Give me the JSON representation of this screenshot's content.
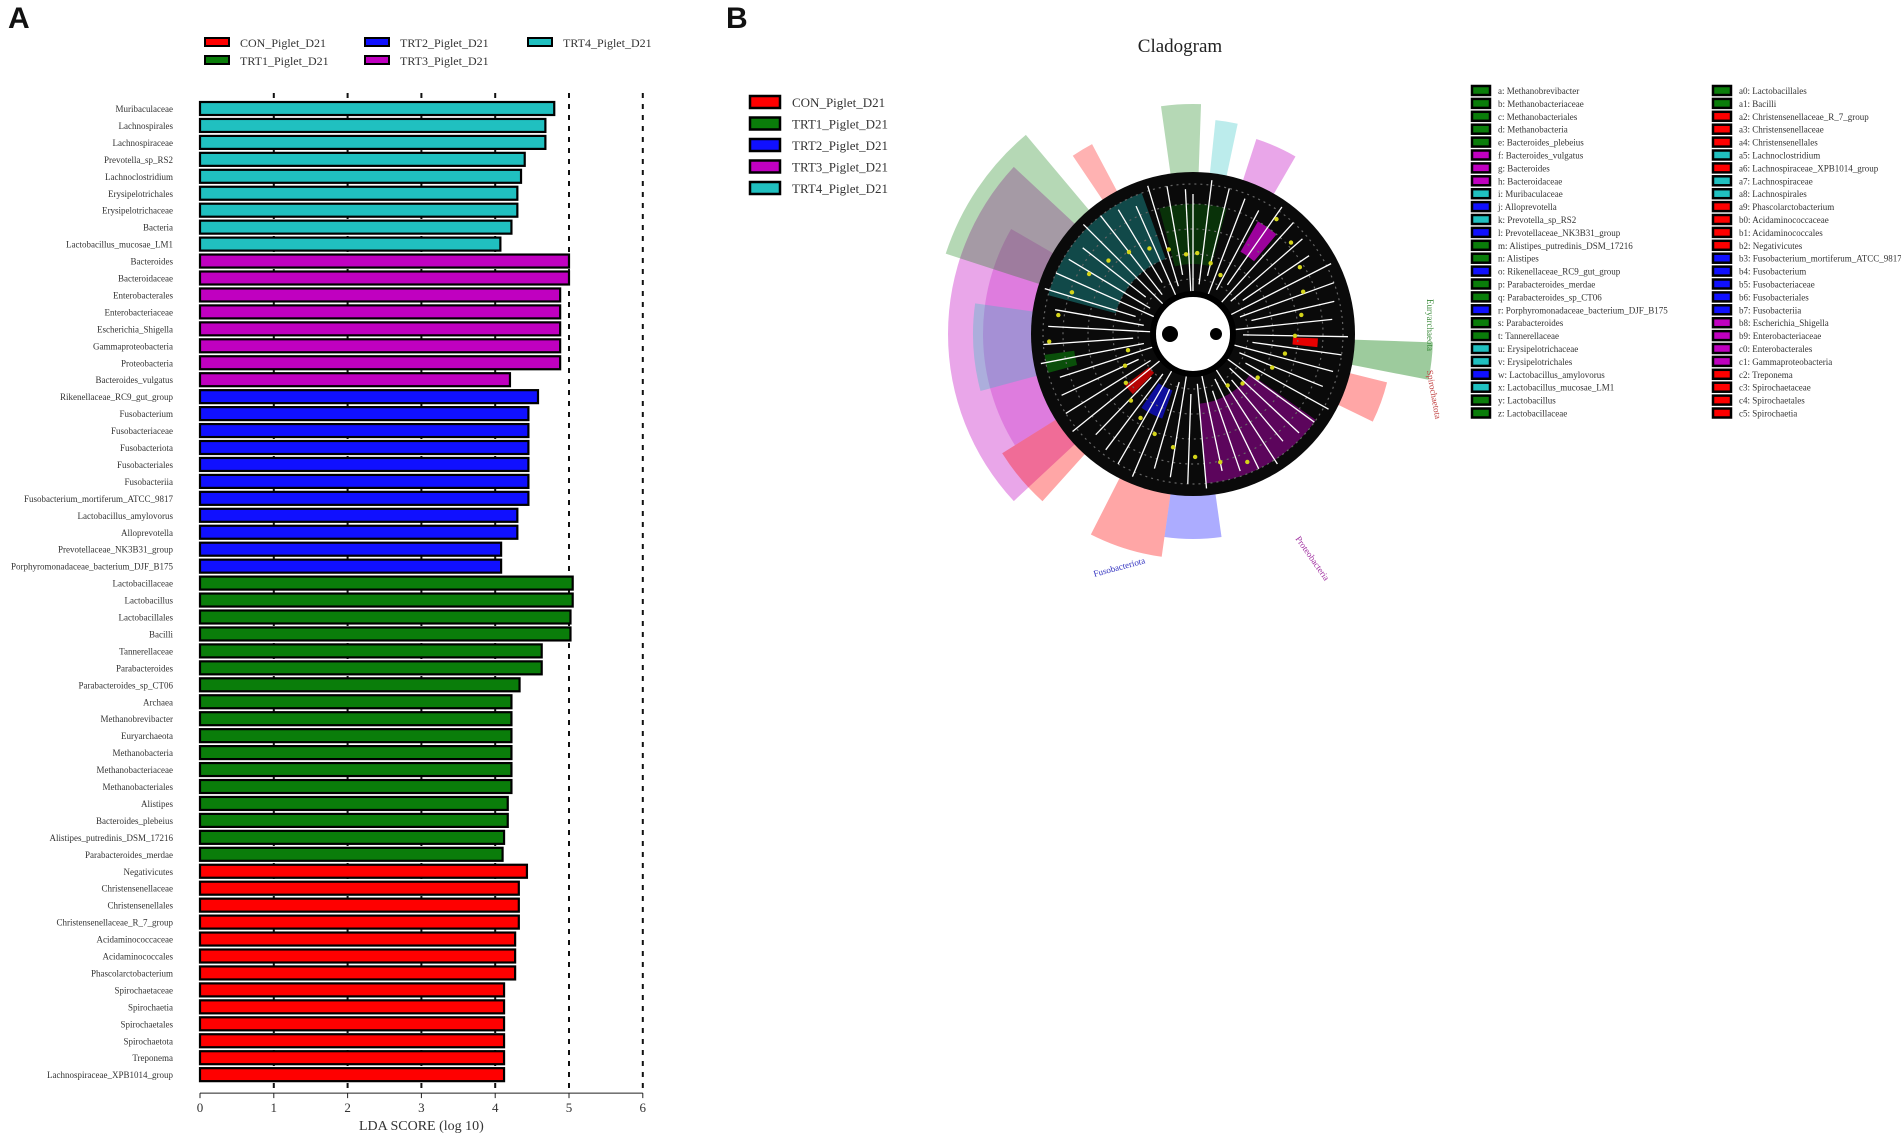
{
  "panels": {
    "a_label": "A",
    "b_label": "B",
    "b_title": "Cladogram"
  },
  "colors": {
    "CON_Piglet_D21": "#ff0000",
    "TRT1_Piglet_D21": "#0a7d0a",
    "TRT2_Piglet_D21": "#1010ff",
    "TRT3_Piglet_D21": "#c000c0",
    "TRT4_Piglet_D21": "#20c0c0"
  },
  "chart_data": [
    {
      "type": "bar",
      "orientation": "horizontal",
      "xlabel": "LDA SCORE (log 10)",
      "xlim": [
        0,
        6
      ],
      "xticks": [
        0,
        1,
        2,
        3,
        4,
        5,
        6
      ],
      "grid": "dashed vertical lines at 1-6",
      "legend_position": "top",
      "legend": [
        "CON_Piglet_D21",
        "TRT1_Piglet_D21",
        "TRT2_Piglet_D21",
        "TRT3_Piglet_D21",
        "TRT4_Piglet_D21"
      ],
      "bars": [
        {
          "label": "Muribaculaceae",
          "value": 4.8,
          "group": "TRT4_Piglet_D21"
        },
        {
          "label": "Lachnospirales",
          "value": 4.68,
          "group": "TRT4_Piglet_D21"
        },
        {
          "label": "Lachnospiraceae",
          "value": 4.68,
          "group": "TRT4_Piglet_D21"
        },
        {
          "label": "Prevotella_sp_RS2",
          "value": 4.4,
          "group": "TRT4_Piglet_D21"
        },
        {
          "label": "Lachnoclostridium",
          "value": 4.35,
          "group": "TRT4_Piglet_D21"
        },
        {
          "label": "Erysipelotrichales",
          "value": 4.3,
          "group": "TRT4_Piglet_D21"
        },
        {
          "label": "Erysipelotrichaceae",
          "value": 4.3,
          "group": "TRT4_Piglet_D21"
        },
        {
          "label": "Bacteria",
          "value": 4.22,
          "group": "TRT4_Piglet_D21"
        },
        {
          "label": "Lactobacillus_mucosae_LM1",
          "value": 4.07,
          "group": "TRT4_Piglet_D21"
        },
        {
          "label": "Bacteroides",
          "value": 5.0,
          "group": "TRT3_Piglet_D21"
        },
        {
          "label": "Bacteroidaceae",
          "value": 5.0,
          "group": "TRT3_Piglet_D21"
        },
        {
          "label": "Enterobacterales",
          "value": 4.88,
          "group": "TRT3_Piglet_D21"
        },
        {
          "label": "Enterobacteriaceae",
          "value": 4.88,
          "group": "TRT3_Piglet_D21"
        },
        {
          "label": "Escherichia_Shigella",
          "value": 4.88,
          "group": "TRT3_Piglet_D21"
        },
        {
          "label": "Gammaproteobacteria",
          "value": 4.88,
          "group": "TRT3_Piglet_D21"
        },
        {
          "label": "Proteobacteria",
          "value": 4.88,
          "group": "TRT3_Piglet_D21"
        },
        {
          "label": "Bacteroides_vulgatus",
          "value": 4.2,
          "group": "TRT3_Piglet_D21"
        },
        {
          "label": "Rikenellaceae_RC9_gut_group",
          "value": 4.58,
          "group": "TRT2_Piglet_D21"
        },
        {
          "label": "Fusobacterium",
          "value": 4.45,
          "group": "TRT2_Piglet_D21"
        },
        {
          "label": "Fusobacteriaceae",
          "value": 4.45,
          "group": "TRT2_Piglet_D21"
        },
        {
          "label": "Fusobacteriota",
          "value": 4.45,
          "group": "TRT2_Piglet_D21"
        },
        {
          "label": "Fusobacteriales",
          "value": 4.45,
          "group": "TRT2_Piglet_D21"
        },
        {
          "label": "Fusobacteriia",
          "value": 4.45,
          "group": "TRT2_Piglet_D21"
        },
        {
          "label": "Fusobacterium_mortiferum_ATCC_9817",
          "value": 4.45,
          "group": "TRT2_Piglet_D21"
        },
        {
          "label": "Lactobacillus_amylovorus",
          "value": 4.3,
          "group": "TRT2_Piglet_D21"
        },
        {
          "label": "Alloprevotella",
          "value": 4.3,
          "group": "TRT2_Piglet_D21"
        },
        {
          "label": "Prevotellaceae_NK3B31_group",
          "value": 4.08,
          "group": "TRT2_Piglet_D21"
        },
        {
          "label": "Porphyromonadaceae_bacterium_DJF_B175",
          "value": 4.08,
          "group": "TRT2_Piglet_D21"
        },
        {
          "label": "Lactobacillaceae",
          "value": 5.05,
          "group": "TRT1_Piglet_D21"
        },
        {
          "label": "Lactobacillus",
          "value": 5.05,
          "group": "TRT1_Piglet_D21"
        },
        {
          "label": "Lactobacillales",
          "value": 5.02,
          "group": "TRT1_Piglet_D21"
        },
        {
          "label": "Bacilli",
          "value": 5.02,
          "group": "TRT1_Piglet_D21"
        },
        {
          "label": "Tannerellaceae",
          "value": 4.63,
          "group": "TRT1_Piglet_D21"
        },
        {
          "label": "Parabacteroides",
          "value": 4.63,
          "group": "TRT1_Piglet_D21"
        },
        {
          "label": "Parabacteroides_sp_CT06",
          "value": 4.33,
          "group": "TRT1_Piglet_D21"
        },
        {
          "label": "Archaea",
          "value": 4.22,
          "group": "TRT1_Piglet_D21"
        },
        {
          "label": "Methanobrevibacter",
          "value": 4.22,
          "group": "TRT1_Piglet_D21"
        },
        {
          "label": "Euryarchaeota",
          "value": 4.22,
          "group": "TRT1_Piglet_D21"
        },
        {
          "label": "Methanobacteria",
          "value": 4.22,
          "group": "TRT1_Piglet_D21"
        },
        {
          "label": "Methanobacteriaceae",
          "value": 4.22,
          "group": "TRT1_Piglet_D21"
        },
        {
          "label": "Methanobacteriales",
          "value": 4.22,
          "group": "TRT1_Piglet_D21"
        },
        {
          "label": "Alistipes",
          "value": 4.17,
          "group": "TRT1_Piglet_D21"
        },
        {
          "label": "Bacteroides_plebeius",
          "value": 4.17,
          "group": "TRT1_Piglet_D21"
        },
        {
          "label": "Alistipes_putredinis_DSM_17216",
          "value": 4.12,
          "group": "TRT1_Piglet_D21"
        },
        {
          "label": "Parabacteroides_merdae",
          "value": 4.1,
          "group": "TRT1_Piglet_D21"
        },
        {
          "label": "Negativicutes",
          "value": 4.43,
          "group": "CON_Piglet_D21"
        },
        {
          "label": "Christensenellaceae",
          "value": 4.32,
          "group": "CON_Piglet_D21"
        },
        {
          "label": "Christensenellales",
          "value": 4.32,
          "group": "CON_Piglet_D21"
        },
        {
          "label": "Christensenellaceae_R_7_group",
          "value": 4.32,
          "group": "CON_Piglet_D21"
        },
        {
          "label": "Acidaminococcaceae",
          "value": 4.27,
          "group": "CON_Piglet_D21"
        },
        {
          "label": "Acidaminococcales",
          "value": 4.27,
          "group": "CON_Piglet_D21"
        },
        {
          "label": "Phascolarctobacterium",
          "value": 4.27,
          "group": "CON_Piglet_D21"
        },
        {
          "label": "Spirochaetaceae",
          "value": 4.12,
          "group": "CON_Piglet_D21"
        },
        {
          "label": "Spirochaetia",
          "value": 4.12,
          "group": "CON_Piglet_D21"
        },
        {
          "label": "Spirochaetales",
          "value": 4.12,
          "group": "CON_Piglet_D21"
        },
        {
          "label": "Spirochaetota",
          "value": 4.12,
          "group": "CON_Piglet_D21"
        },
        {
          "label": "Treponema",
          "value": 4.12,
          "group": "CON_Piglet_D21"
        },
        {
          "label": "Lachnospiraceae_XPB1014_group",
          "value": 4.12,
          "group": "CON_Piglet_D21"
        }
      ]
    },
    {
      "type": "cladogram",
      "title": "Cladogram",
      "legend": [
        "CON_Piglet_D21",
        "TRT1_Piglet_D21",
        "TRT2_Piglet_D21",
        "TRT3_Piglet_D21",
        "TRT4_Piglet_D21"
      ],
      "clade_labels": [
        "Euryarchaeota",
        "Spirochaetota",
        "Proteobacteria",
        "Fusobacteriota"
      ],
      "key_col1": [
        {
          "key": "a",
          "name": "Methanobrevibacter",
          "group": "TRT1_Piglet_D21"
        },
        {
          "key": "b",
          "name": "Methanobacteriaceae",
          "group": "TRT1_Piglet_D21"
        },
        {
          "key": "c",
          "name": "Methanobacteriales",
          "group": "TRT1_Piglet_D21"
        },
        {
          "key": "d",
          "name": "Methanobacteria",
          "group": "TRT1_Piglet_D21"
        },
        {
          "key": "e",
          "name": "Bacteroides_plebeius",
          "group": "TRT1_Piglet_D21"
        },
        {
          "key": "f",
          "name": "Bacteroides_vulgatus",
          "group": "TRT3_Piglet_D21"
        },
        {
          "key": "g",
          "name": "Bacteroides",
          "group": "TRT3_Piglet_D21"
        },
        {
          "key": "h",
          "name": "Bacteroidaceae",
          "group": "TRT3_Piglet_D21"
        },
        {
          "key": "i",
          "name": "Muribaculaceae",
          "group": "TRT4_Piglet_D21"
        },
        {
          "key": "j",
          "name": "Alloprevotella",
          "group": "TRT2_Piglet_D21"
        },
        {
          "key": "k",
          "name": "Prevotella_sp_RS2",
          "group": "TRT4_Piglet_D21"
        },
        {
          "key": "l",
          "name": "Prevotellaceae_NK3B31_group",
          "group": "TRT2_Piglet_D21"
        },
        {
          "key": "m",
          "name": "Alistipes_putredinis_DSM_17216",
          "group": "TRT1_Piglet_D21"
        },
        {
          "key": "n",
          "name": "Alistipes",
          "group": "TRT1_Piglet_D21"
        },
        {
          "key": "o",
          "name": "Rikenellaceae_RC9_gut_group",
          "group": "TRT2_Piglet_D21"
        },
        {
          "key": "p",
          "name": "Parabacteroides_merdae",
          "group": "TRT1_Piglet_D21"
        },
        {
          "key": "q",
          "name": "Parabacteroides_sp_CT06",
          "group": "TRT1_Piglet_D21"
        },
        {
          "key": "r",
          "name": "Porphyromonadaceae_bacterium_DJF_B175",
          "group": "TRT2_Piglet_D21"
        },
        {
          "key": "s",
          "name": "Parabacteroides",
          "group": "TRT1_Piglet_D21"
        },
        {
          "key": "t",
          "name": "Tannerellaceae",
          "group": "TRT1_Piglet_D21"
        },
        {
          "key": "u",
          "name": "Erysipelotrichaceae",
          "group": "TRT4_Piglet_D21"
        },
        {
          "key": "v",
          "name": "Erysipelotrichales",
          "group": "TRT4_Piglet_D21"
        },
        {
          "key": "w",
          "name": "Lactobacillus_amylovorus",
          "group": "TRT2_Piglet_D21"
        },
        {
          "key": "x",
          "name": "Lactobacillus_mucosae_LM1",
          "group": "TRT4_Piglet_D21"
        },
        {
          "key": "y",
          "name": "Lactobacillus",
          "group": "TRT1_Piglet_D21"
        },
        {
          "key": "z",
          "name": "Lactobacillaceae",
          "group": "TRT1_Piglet_D21"
        }
      ],
      "key_col2": [
        {
          "key": "a0",
          "name": "Lactobacillales",
          "group": "TRT1_Piglet_D21"
        },
        {
          "key": "a1",
          "name": "Bacilli",
          "group": "TRT1_Piglet_D21"
        },
        {
          "key": "a2",
          "name": "Christensenellaceae_R_7_group",
          "group": "CON_Piglet_D21"
        },
        {
          "key": "a3",
          "name": "Christensenellaceae",
          "group": "CON_Piglet_D21"
        },
        {
          "key": "a4",
          "name": "Christensenellales",
          "group": "CON_Piglet_D21"
        },
        {
          "key": "a5",
          "name": "Lachnoclostridium",
          "group": "TRT4_Piglet_D21"
        },
        {
          "key": "a6",
          "name": "Lachnospiraceae_XPB1014_group",
          "group": "CON_Piglet_D21"
        },
        {
          "key": "a7",
          "name": "Lachnospiraceae",
          "group": "TRT4_Piglet_D21"
        },
        {
          "key": "a8",
          "name": "Lachnospirales",
          "group": "TRT4_Piglet_D21"
        },
        {
          "key": "a9",
          "name": "Phascolarctobacterium",
          "group": "CON_Piglet_D21"
        },
        {
          "key": "b0",
          "name": "Acidaminococcaceae",
          "group": "CON_Piglet_D21"
        },
        {
          "key": "b1",
          "name": "Acidaminococcales",
          "group": "CON_Piglet_D21"
        },
        {
          "key": "b2",
          "name": "Negativicutes",
          "group": "CON_Piglet_D21"
        },
        {
          "key": "b3",
          "name": "Fusobacterium_mortiferum_ATCC_9817",
          "group": "TRT2_Piglet_D21"
        },
        {
          "key": "b4",
          "name": "Fusobacterium",
          "group": "TRT2_Piglet_D21"
        },
        {
          "key": "b5",
          "name": "Fusobacteriaceae",
          "group": "TRT2_Piglet_D21"
        },
        {
          "key": "b6",
          "name": "Fusobacteriales",
          "group": "TRT2_Piglet_D21"
        },
        {
          "key": "b7",
          "name": "Fusobacteriia",
          "group": "TRT2_Piglet_D21"
        },
        {
          "key": "b8",
          "name": "Escherichia_Shigella",
          "group": "TRT3_Piglet_D21"
        },
        {
          "key": "b9",
          "name": "Enterobacteriaceae",
          "group": "TRT3_Piglet_D21"
        },
        {
          "key": "c0",
          "name": "Enterobacterales",
          "group": "TRT3_Piglet_D21"
        },
        {
          "key": "c1",
          "name": "Gammaproteobacteria",
          "group": "TRT3_Piglet_D21"
        },
        {
          "key": "c2",
          "name": "Treponema",
          "group": "CON_Piglet_D21"
        },
        {
          "key": "c3",
          "name": "Spirochaetaceae",
          "group": "CON_Piglet_D21"
        },
        {
          "key": "c4",
          "name": "Spirochaetales",
          "group": "CON_Piglet_D21"
        },
        {
          "key": "c5",
          "name": "Spirochaetia",
          "group": "CON_Piglet_D21"
        }
      ]
    }
  ]
}
